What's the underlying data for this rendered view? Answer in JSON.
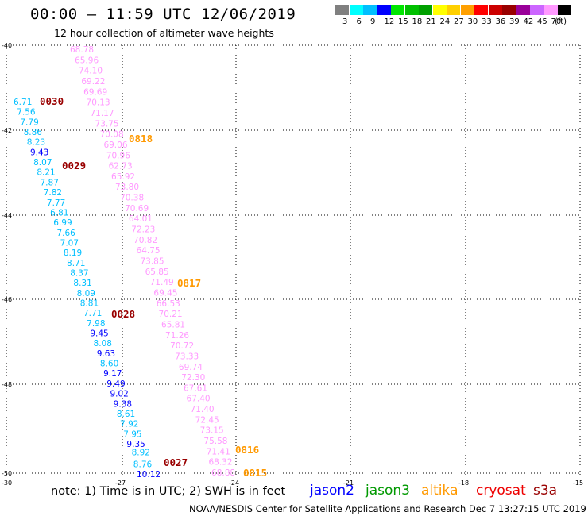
{
  "header": {
    "title": "00:00 – 11:59 UTC 12/06/2019",
    "subtitle": "12 hour collection of altimeter wave heights"
  },
  "colorbar": {
    "colors": [
      "#808080",
      "#00ffff",
      "#00bfff",
      "#0000ff",
      "#00e600",
      "#00c000",
      "#00a000",
      "#ffff00",
      "#ffd000",
      "#ffa000",
      "#ff0000",
      "#cc0000",
      "#990000",
      "#990099",
      "#cc66ff",
      "#ff99ff",
      "#000000"
    ],
    "labels": [
      "3",
      "6",
      "9",
      "12",
      "15",
      "18",
      "21",
      "24",
      "27",
      "30",
      "33",
      "36",
      "39",
      "42",
      "45",
      "70",
      "(ft)"
    ]
  },
  "axes": {
    "lat_labels": [
      "-40",
      "-42",
      "-44",
      "-46",
      "-48",
      "-50"
    ],
    "lon_labels": [
      "-30",
      "-27",
      "-24",
      "-21",
      "-18",
      "-15"
    ]
  },
  "map": {
    "time_labels": [
      {
        "text": "0030",
        "color": "#990000"
      },
      {
        "text": "0818",
        "color": "#ff9900"
      },
      {
        "text": "0029",
        "color": "#990000"
      },
      {
        "text": "0817",
        "color": "#ff9900"
      },
      {
        "text": "0028",
        "color": "#990000"
      },
      {
        "text": "0027",
        "color": "#990000"
      },
      {
        "text": "0816",
        "color": "#ff9900"
      },
      {
        "text": "0815",
        "color": "#ff9900"
      }
    ],
    "track_altika": [
      "68.78",
      "65.96",
      "74.10",
      "69.22",
      "69.69",
      "70.13",
      "71.17",
      "73.75",
      "70.08",
      "69.06",
      "70.96",
      "62.73",
      "65.92",
      "73.80",
      "70.38",
      "70.69",
      "64.01",
      "72.23",
      "70.82",
      "64.75",
      "73.85",
      "65.85",
      "71.49",
      "69.45",
      "66.53",
      "70.21",
      "65.81",
      "71.26",
      "70.72",
      "73.33",
      "69.74",
      "72.30",
      "67.61",
      "67.40",
      "71.40",
      "72.45",
      "73.15",
      "75.58",
      "71.41",
      "68.32",
      "68.88"
    ],
    "track_cryosat": [
      "6.71",
      "7.56",
      "7.79",
      "8.86",
      "8.23",
      "9.43",
      "8.07",
      "8.21",
      "7.87",
      "7.82",
      "7.77",
      "6.81",
      "6.99",
      "7.66",
      "7.07",
      "8.19",
      "8.71",
      "8.37",
      "8.31",
      "8.09",
      "8.81",
      "7.71",
      "7.98",
      "9.45",
      "8.08",
      "9.63",
      "8.60",
      "9.17",
      "9.49",
      "9.02",
      "9.38",
      "8.61",
      "7.92",
      "7.95",
      "9.35",
      "8.92",
      "8.76",
      "10.12"
    ]
  },
  "footer": {
    "note": "note:  1) Time is in UTC;  2) SWH is in feet",
    "legend": [
      {
        "label": "jason2",
        "color": "#0000ff"
      },
      {
        "label": "jason3",
        "color": "#009900"
      },
      {
        "label": "altika",
        "color": "#ff9900"
      },
      {
        "label": "cryosat",
        "color": "#ee0000"
      },
      {
        "label": "s3a",
        "color": "#990000"
      }
    ],
    "credit": "NOAA/NESDIS Center for Satellite Applications and Research    Dec  7 13:27:15 UTC 2019"
  }
}
